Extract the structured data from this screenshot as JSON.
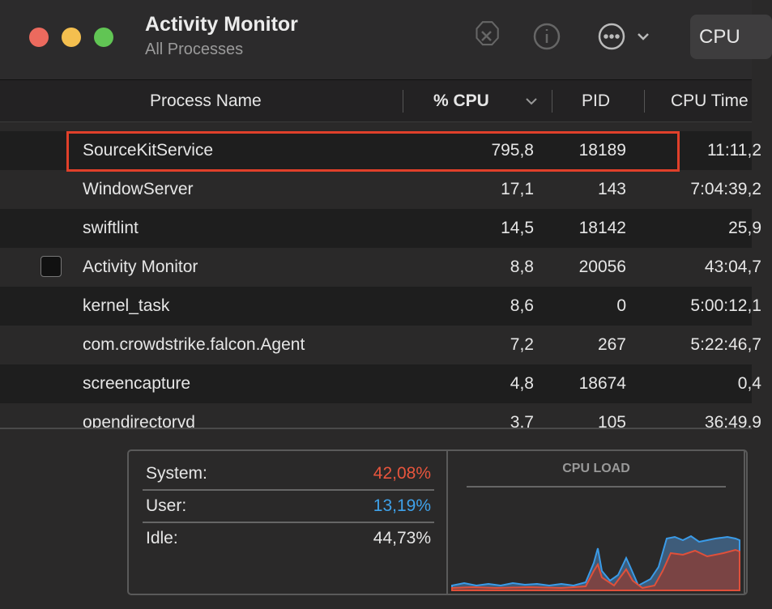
{
  "window": {
    "title": "Activity Monitor",
    "subtitle": "All Processes",
    "tab": "CPU"
  },
  "table": {
    "columns": [
      "Process Name",
      "% CPU",
      "PID",
      "CPU Time"
    ],
    "rows": [
      [
        "SourceKitService",
        "795,8",
        "18189",
        "11:11,2"
      ],
      [
        "WindowServer",
        "17,1",
        "143",
        "7:04:39,2"
      ],
      [
        "swiftlint",
        "14,5",
        "18142",
        "25,9"
      ],
      [
        "Activity Monitor",
        "8,8",
        "20056",
        "43:04,7"
      ],
      [
        "kernel_task",
        "8,6",
        "0",
        "5:00:12,1"
      ],
      [
        "com.crowdstrike.falcon.Agent",
        "7,2",
        "267",
        "5:22:46,7"
      ],
      [
        "screencapture",
        "4,8",
        "18674",
        "0,4"
      ],
      [
        "opendirectoryd",
        "3,7",
        "105",
        "36:49,9"
      ]
    ]
  },
  "stats": [
    {
      "label": "System:",
      "value": "42,08%"
    },
    {
      "label": "User:",
      "value": "13,19%"
    },
    {
      "label": "Idle:",
      "value": "44,73%"
    }
  ],
  "graph": {
    "title": "CPU LOAD"
  }
}
